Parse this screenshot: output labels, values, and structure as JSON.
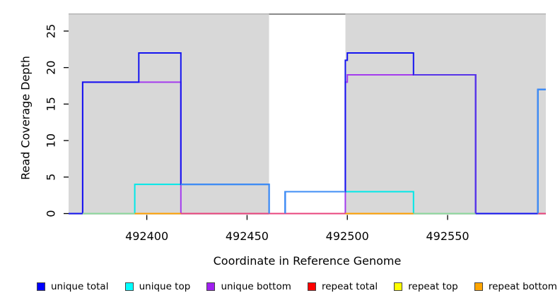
{
  "figure": {
    "background": "#ffffff",
    "plot_fill": "#d8d8d8"
  },
  "axes": {
    "x_label": "Coordinate in Reference Genome",
    "y_label": "Read Coverage Depth",
    "x_ticks": [
      492400,
      492450,
      492500,
      492550
    ],
    "y_ticks": [
      0,
      5,
      10,
      15,
      20,
      25
    ]
  },
  "chart_data": {
    "type": "line",
    "title": "",
    "xlabel": "Coordinate in Reference Genome",
    "ylabel": "Read Coverage Depth",
    "x_range": [
      492361,
      492599
    ],
    "y_range": [
      0,
      27.4
    ],
    "x_ticks": [
      492400,
      492450,
      492500,
      492550
    ],
    "y_ticks": [
      0,
      5,
      10,
      15,
      20,
      25
    ],
    "grid": false,
    "legend_position": "bottom",
    "background_shading": {
      "plot_fill": "#d8d8d8",
      "plot_top_border_color": "#b5b5b5",
      "white_band_x": [
        492461,
        492499
      ],
      "white_band_fill": "#ffffff",
      "white_band_cap_color": "#8a8a8a"
    },
    "series": [
      {
        "name": "unique total",
        "color": "#1414f0",
        "points": [
          [
            492361,
            0
          ],
          [
            492368,
            0
          ],
          [
            492368,
            18
          ],
          [
            492396,
            18
          ],
          [
            492396,
            22
          ],
          [
            492417,
            22
          ],
          [
            492417,
            4
          ],
          [
            492461,
            4
          ],
          [
            492461,
            0
          ],
          [
            492469,
            0
          ],
          [
            492469,
            3
          ],
          [
            492499,
            3
          ],
          [
            492499,
            21
          ],
          [
            492500,
            21
          ],
          [
            492500,
            22
          ],
          [
            492533,
            22
          ],
          [
            492533,
            19
          ],
          [
            492564,
            19
          ],
          [
            492564,
            0
          ],
          [
            492595,
            0
          ],
          [
            492595,
            17
          ],
          [
            492599,
            17
          ]
        ]
      },
      {
        "name": "unique top",
        "color": "#00e8e8",
        "points": [
          [
            492361,
            0
          ],
          [
            492394,
            0
          ],
          [
            492394,
            4
          ],
          [
            492461,
            4
          ],
          [
            492461,
            0
          ],
          [
            492469,
            0
          ],
          [
            492469,
            3
          ],
          [
            492533,
            3
          ],
          [
            492533,
            0
          ],
          [
            492595,
            0
          ],
          [
            492595,
            17
          ],
          [
            492599,
            17
          ]
        ]
      },
      {
        "name": "unique bottom",
        "color": "#a43bee",
        "points": [
          [
            492361,
            0
          ],
          [
            492368,
            0
          ],
          [
            492368,
            18
          ],
          [
            492417,
            18
          ],
          [
            492417,
            0
          ],
          [
            492499,
            0
          ],
          [
            492499,
            18
          ],
          [
            492500,
            18
          ],
          [
            492500,
            19
          ],
          [
            492564,
            19
          ],
          [
            492564,
            0
          ],
          [
            492599,
            0
          ]
        ]
      },
      {
        "name": "repeat total",
        "color": "#e8447c",
        "points": [
          [
            492361,
            0
          ],
          [
            492599,
            0
          ]
        ]
      },
      {
        "name": "repeat top",
        "color": "#ffff00",
        "points": [
          [
            492361,
            0
          ],
          [
            492599,
            0
          ]
        ]
      },
      {
        "name": "repeat bottom",
        "color": "#ffa000",
        "points": [
          [
            492361,
            0
          ],
          [
            492599,
            0
          ]
        ]
      }
    ],
    "overlap_blend_segments": [
      {
        "color": "#8bd79b",
        "points": [
          [
            492368,
            0
          ],
          [
            492394,
            0
          ]
        ]
      },
      {
        "color": "#ffa000",
        "points": [
          [
            492394,
            0
          ],
          [
            492417,
            0
          ]
        ]
      },
      {
        "color": "#e8447c",
        "points": [
          [
            492417,
            0
          ],
          [
            492499,
            0
          ]
        ]
      },
      {
        "color": "#ffa000",
        "points": [
          [
            492499,
            0
          ],
          [
            492533,
            0
          ]
        ]
      },
      {
        "color": "#8bd79b",
        "points": [
          [
            492533,
            0
          ],
          [
            492564,
            0
          ]
        ]
      },
      {
        "color": "#e8447c",
        "points": [
          [
            492595,
            0
          ],
          [
            492599,
            0
          ]
        ]
      },
      {
        "color": "#3f8ef5",
        "points": [
          [
            492417,
            4
          ],
          [
            492461,
            4
          ],
          [
            492461,
            0
          ]
        ]
      },
      {
        "color": "#3f8ef5",
        "points": [
          [
            492469,
            0
          ],
          [
            492469,
            3
          ],
          [
            492499,
            3
          ]
        ]
      },
      {
        "color": "#3f8ef5",
        "points": [
          [
            492595,
            0
          ],
          [
            492595,
            17
          ],
          [
            492599,
            17
          ]
        ]
      },
      {
        "color": "#5633e8",
        "points": [
          [
            492533,
            19
          ],
          [
            492564,
            19
          ],
          [
            492564,
            0
          ]
        ]
      }
    ]
  },
  "legend": {
    "items": [
      {
        "label": "unique total",
        "color": "#0000ff"
      },
      {
        "label": "unique top",
        "color": "#00ffff"
      },
      {
        "label": "unique bottom",
        "color": "#a020f0"
      },
      {
        "label": "repeat total",
        "color": "#ff0000"
      },
      {
        "label": "repeat top",
        "color": "#ffff00"
      },
      {
        "label": "repeat bottom",
        "color": "#ffa500"
      }
    ]
  }
}
